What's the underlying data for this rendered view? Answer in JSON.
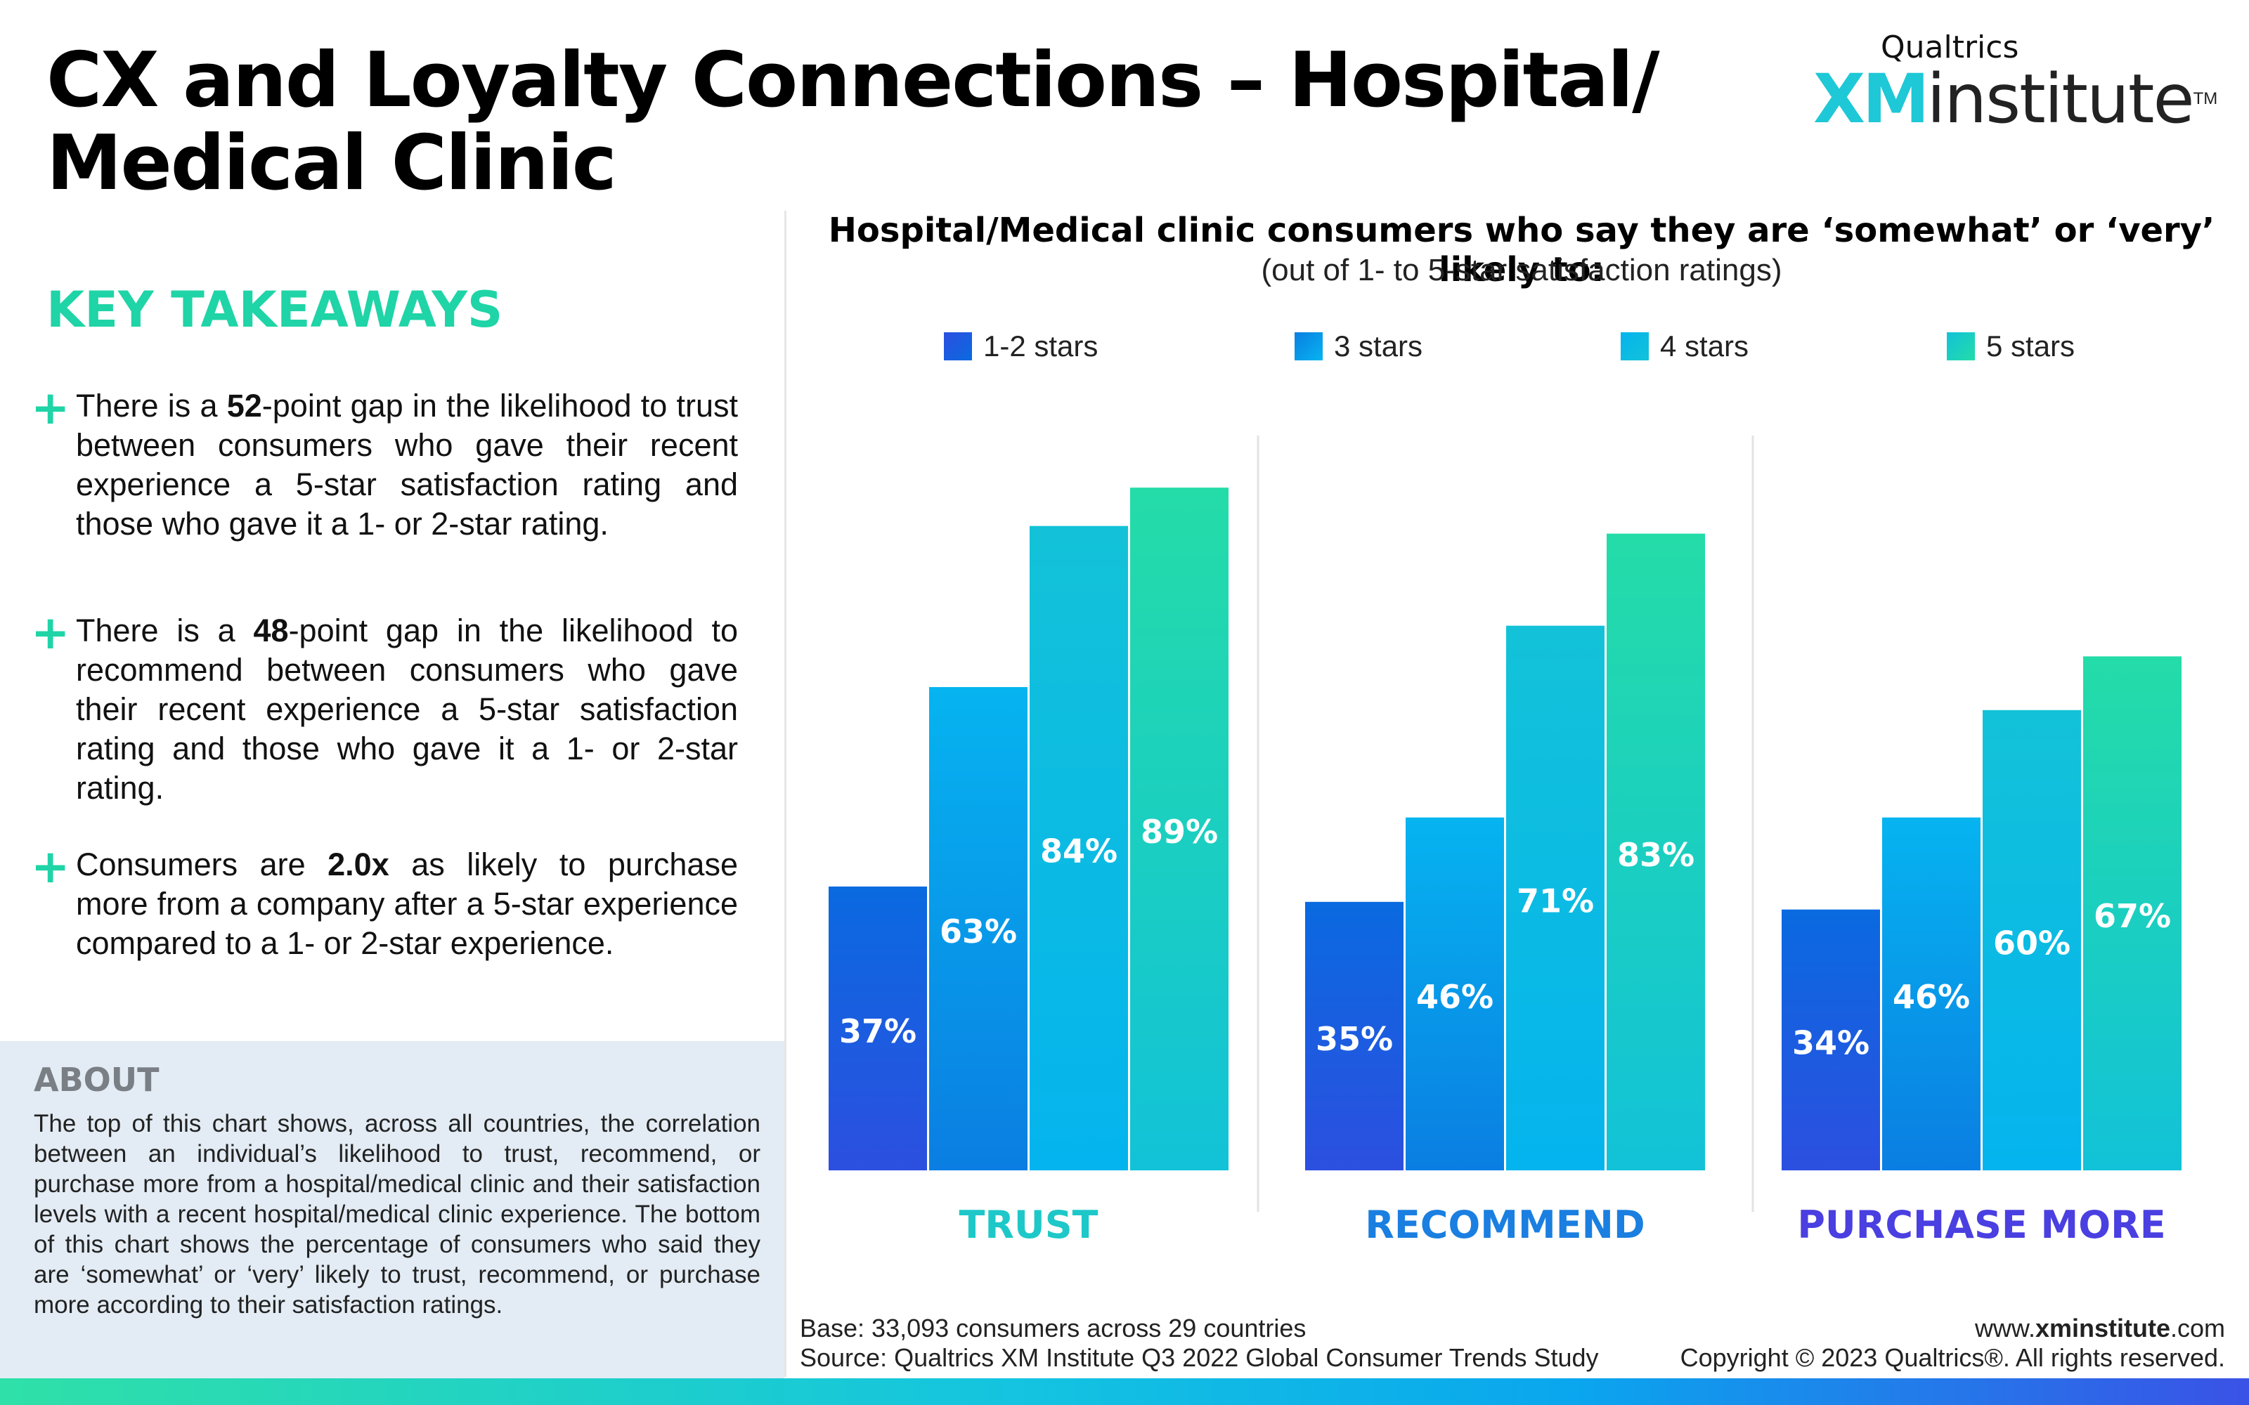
{
  "header": {
    "title": "CX and Loyalty Connections – Hospital/ Medical Clinic",
    "brand_top": "Qualtrics",
    "brand_xm": "XM",
    "brand_institute": "institute",
    "brand_tm": "TM"
  },
  "takeaways": {
    "heading": "KEY TAKEAWAYS",
    "items": [
      {
        "pre": "There is a ",
        "bold": "52",
        "post": "-point gap in the likelihood to trust between consumers who gave their recent experience a 5-star satisfaction rating and those who gave it a 1- or 2-star rating."
      },
      {
        "pre": "There is a  ",
        "bold": "48",
        "post": "-point gap in the likelihood to recommend between consumers who gave their recent experience a 5-star satisfaction rating and those who gave it a 1- or 2-star rating."
      },
      {
        "pre": "Consumers are ",
        "bold": "2.0x",
        "post": " as likely to purchase more from a company after a 5-star experience compared to a 1- or 2-star experience."
      }
    ]
  },
  "about": {
    "heading": "ABOUT",
    "text": "The top of this chart shows, across all countries, the correlation between an individual’s likelihood to trust, recommend, or purchase more from a hospital/medical clinic and their satisfaction levels with a recent hospital/medical clinic experience. The bottom of this chart shows the percentage of consumers who said they are ‘somewhat’ or ‘very’ likely to trust, recommend, or purchase more according to their satisfaction ratings."
  },
  "chart_data": {
    "type": "bar",
    "title": "Hospital/Medical clinic consumers who say they are ‘somewhat’ or ‘very’ likely to:",
    "subtitle": "(out of 1- to 5-star satisfaction ratings)",
    "categories": [
      "TRUST",
      "RECOMMEND",
      "PURCHASE MORE"
    ],
    "category_colors": [
      "#1ec8c8",
      "#1a7fe0",
      "#4a3fe0"
    ],
    "series": [
      {
        "name": "1-2 stars",
        "values": [
          37,
          35,
          34
        ],
        "color_top": "#0a6ae0",
        "color_bottom": "#2c4fe0"
      },
      {
        "name": "3 stars",
        "values": [
          63,
          46,
          46
        ],
        "color_top": "#06b4f0",
        "color_bottom": "#0a7ee2"
      },
      {
        "name": "4 stars",
        "values": [
          84,
          71,
          60
        ],
        "color_top": "#13c2d8",
        "color_bottom": "#04b4ee"
      },
      {
        "name": "5 stars",
        "values": [
          89,
          83,
          67
        ],
        "color_top": "#24dca8",
        "color_bottom": "#12c2d8"
      }
    ],
    "value_suffix": "%",
    "ylim": [
      0,
      100
    ],
    "legend_position": "top",
    "grid": false
  },
  "footer": {
    "base": "Base: 33,093 consumers across 29 countries",
    "source": "Source: Qualtrics XM Institute Q3 2022 Global Consumer Trends Study",
    "site_pre": "www.",
    "site_bold": "xminstitute",
    "site_post": ".com",
    "copyright": "Copyright © 2023 Qualtrics®. All rights reserved."
  }
}
